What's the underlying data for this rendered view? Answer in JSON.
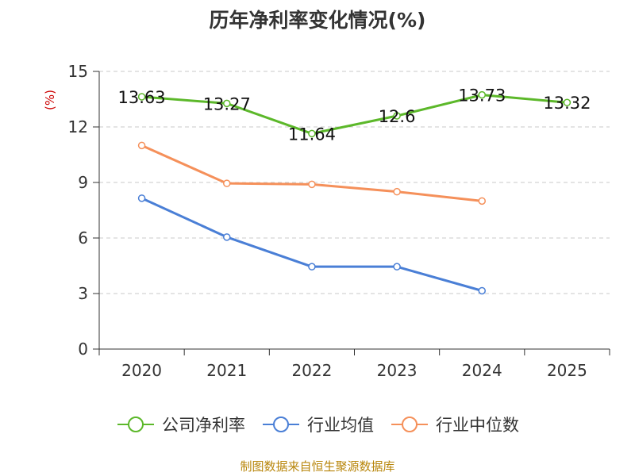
{
  "chart_data": {
    "type": "line",
    "title": "历年净利率变化情况(%)",
    "ylabel": "(%)",
    "xlabel": "",
    "categories": [
      "2020",
      "2021",
      "2022",
      "2023",
      "2024",
      "2025"
    ],
    "ylim": [
      0,
      15
    ],
    "yticks": [
      0,
      3,
      6,
      9,
      12,
      15
    ],
    "grid": true,
    "legend_position": "bottom",
    "series": [
      {
        "name": "公司净利率",
        "color": "#5cb82a",
        "values": [
          13.63,
          13.27,
          11.64,
          12.6,
          13.73,
          13.32
        ],
        "labels": [
          "13.63",
          "13.27",
          "11.64",
          "12.6",
          "13.73",
          "13.32"
        ]
      },
      {
        "name": "行业均值",
        "color": "#4a7fd6",
        "values": [
          8.15,
          6.05,
          4.45,
          4.45,
          3.15,
          null
        ]
      },
      {
        "name": "行业中位数",
        "color": "#f5905a",
        "values": [
          11.0,
          8.95,
          8.9,
          8.5,
          8.0,
          null
        ]
      }
    ]
  },
  "source_text": "制图数据来自恒生聚源数据库"
}
